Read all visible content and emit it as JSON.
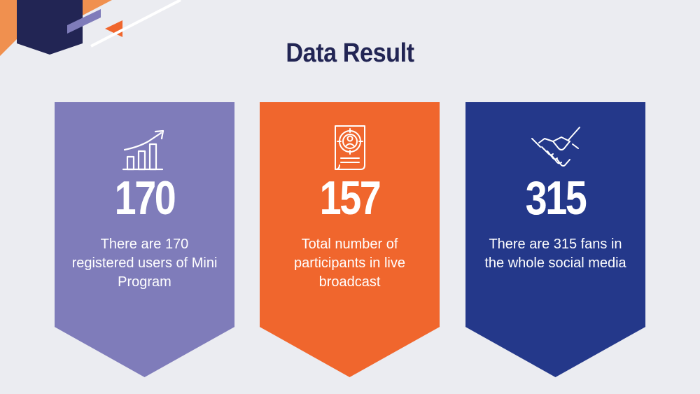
{
  "slide": {
    "title": "Data Result"
  },
  "colors": {
    "background": "#ebecf1",
    "title": "#222554",
    "card_purple": "#7f7cba",
    "card_orange": "#f0662d",
    "card_navy": "#24388a",
    "deco_orange": "#f0904f",
    "deco_navy": "#222554",
    "deco_accent": "#f0662d"
  },
  "cards": [
    {
      "icon": "growth-chart-icon",
      "number": "170",
      "text": "There are 170 registered users of Mini Program"
    },
    {
      "icon": "target-document-icon",
      "number": "157",
      "text": "Total number of participants in live broadcast"
    },
    {
      "icon": "handshake-icon",
      "number": "315",
      "text": "There are 315 fans in the whole social media"
    }
  ]
}
